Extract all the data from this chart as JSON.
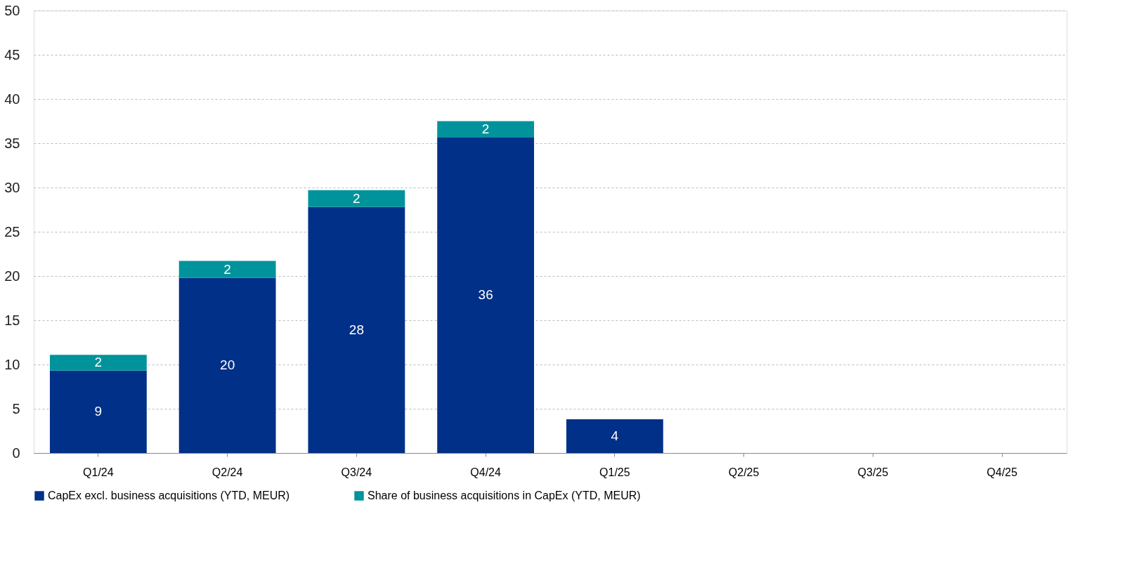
{
  "chart_data": {
    "type": "bar",
    "stacked": true,
    "categories": [
      "Q1/24",
      "Q2/24",
      "Q3/24",
      "Q4/24",
      "Q1/25",
      "Q2/25",
      "Q3/25",
      "Q4/25"
    ],
    "series": [
      {
        "name": "CapEx excl. business acquisitions (YTD, MEUR)",
        "color": "#003087",
        "values": [
          9.3,
          19.8,
          27.8,
          35.7,
          3.8,
          null,
          null,
          null
        ],
        "value_labels": [
          "9",
          "20",
          "28",
          "36",
          "4",
          null,
          null,
          null
        ]
      },
      {
        "name": "Share of business acquisitions in CapEx (YTD, MEUR)",
        "color": "#00939b",
        "values": [
          1.8,
          1.9,
          1.9,
          1.8,
          null,
          null,
          null,
          null
        ],
        "value_labels": [
          "2",
          "2",
          "2",
          "2",
          null,
          null,
          null,
          null
        ]
      }
    ],
    "ylim": [
      0,
      50
    ],
    "yticks": [
      0,
      5,
      10,
      15,
      20,
      25,
      30,
      35,
      40,
      45,
      50
    ],
    "grid": "y",
    "legend": "bottom"
  }
}
